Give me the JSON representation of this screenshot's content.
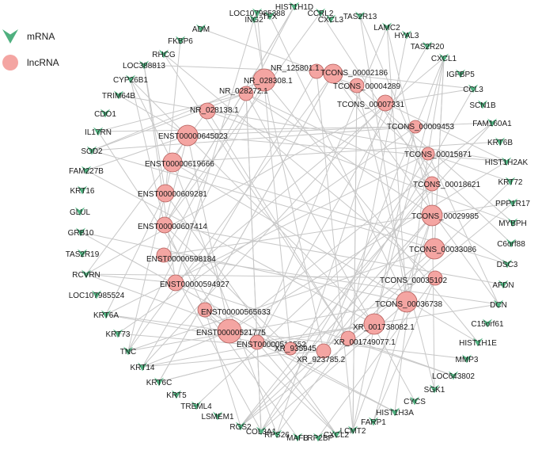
{
  "colors": {
    "mrna": "#4fb07f",
    "lncrna": "#f4a5a2",
    "lncrna_stroke": "#b25d5a",
    "edge": "#c8c8c8"
  },
  "legend": [
    {
      "label": "mRNA",
      "shape": "triangle-down"
    },
    {
      "label": "lncRNA",
      "shape": "circle"
    }
  ],
  "mrna_nodes": [
    "HIST1H1D",
    "LOC107985388",
    "TFX",
    "ING2",
    "CCRL2",
    "CXCL3",
    "TAS2R13",
    "ADM",
    "LAMC2",
    "FKBP6",
    "HYAL3",
    "RHCG",
    "TAS2R20",
    "LOC388813",
    "CXCL1",
    "CYP26B1",
    "IGFBP5",
    "TRIM64B",
    "CCL3",
    "CDO1",
    "SCN1B",
    "IL17RN",
    "FAM160A1",
    "SOD2",
    "KRT6B",
    "FAM227B",
    "HIST1H2AK",
    "KRT16",
    "KRT72",
    "GLUL",
    "PPP1R17",
    "GRB10",
    "MYBPH",
    "TAS2R19",
    "C6orf88",
    "RCVRN",
    "DSC3",
    "LOC107985524",
    "AFDN",
    "KRT6A",
    "DCN",
    "KRT73",
    "C15orf61",
    "TNC",
    "HIST1H1E",
    "KRT14",
    "MMP3",
    "KRT6C",
    "LOC643802",
    "KRT5",
    "SGK1",
    "TREML4",
    "CYCS",
    "LSMEM1",
    "HIST1H3A",
    "RGS2",
    "FARP1",
    "COL3A1",
    "LCMT2",
    "RPS26",
    "MAFB",
    "LRP2BP",
    "CXCL2"
  ],
  "lncrna_nodes": [
    "NR_125801.1",
    "TCONS_00002186",
    "NR_028308.1",
    "TCONS_00004289",
    "NR_028272.1",
    "TCONS_00007331",
    "NR_028138.1",
    "TCONS_00009453",
    "ENST00000645023",
    "TCONS_00015871",
    "ENST00000619666",
    "TCONS_00018621",
    "ENST00000609281",
    "TCONS_00029985",
    "ENST00000607414",
    "TCONS_00033086",
    "ENST00000598184",
    "TCONS_00035102",
    "ENST00000594927",
    "TCONS_00036738",
    "ENST00000565633",
    "XR_001738082.1",
    "ENST00000521775",
    "ENST00000518552",
    "XR_001749077.1",
    "XR_935945",
    "XR_923785.2"
  ]
}
